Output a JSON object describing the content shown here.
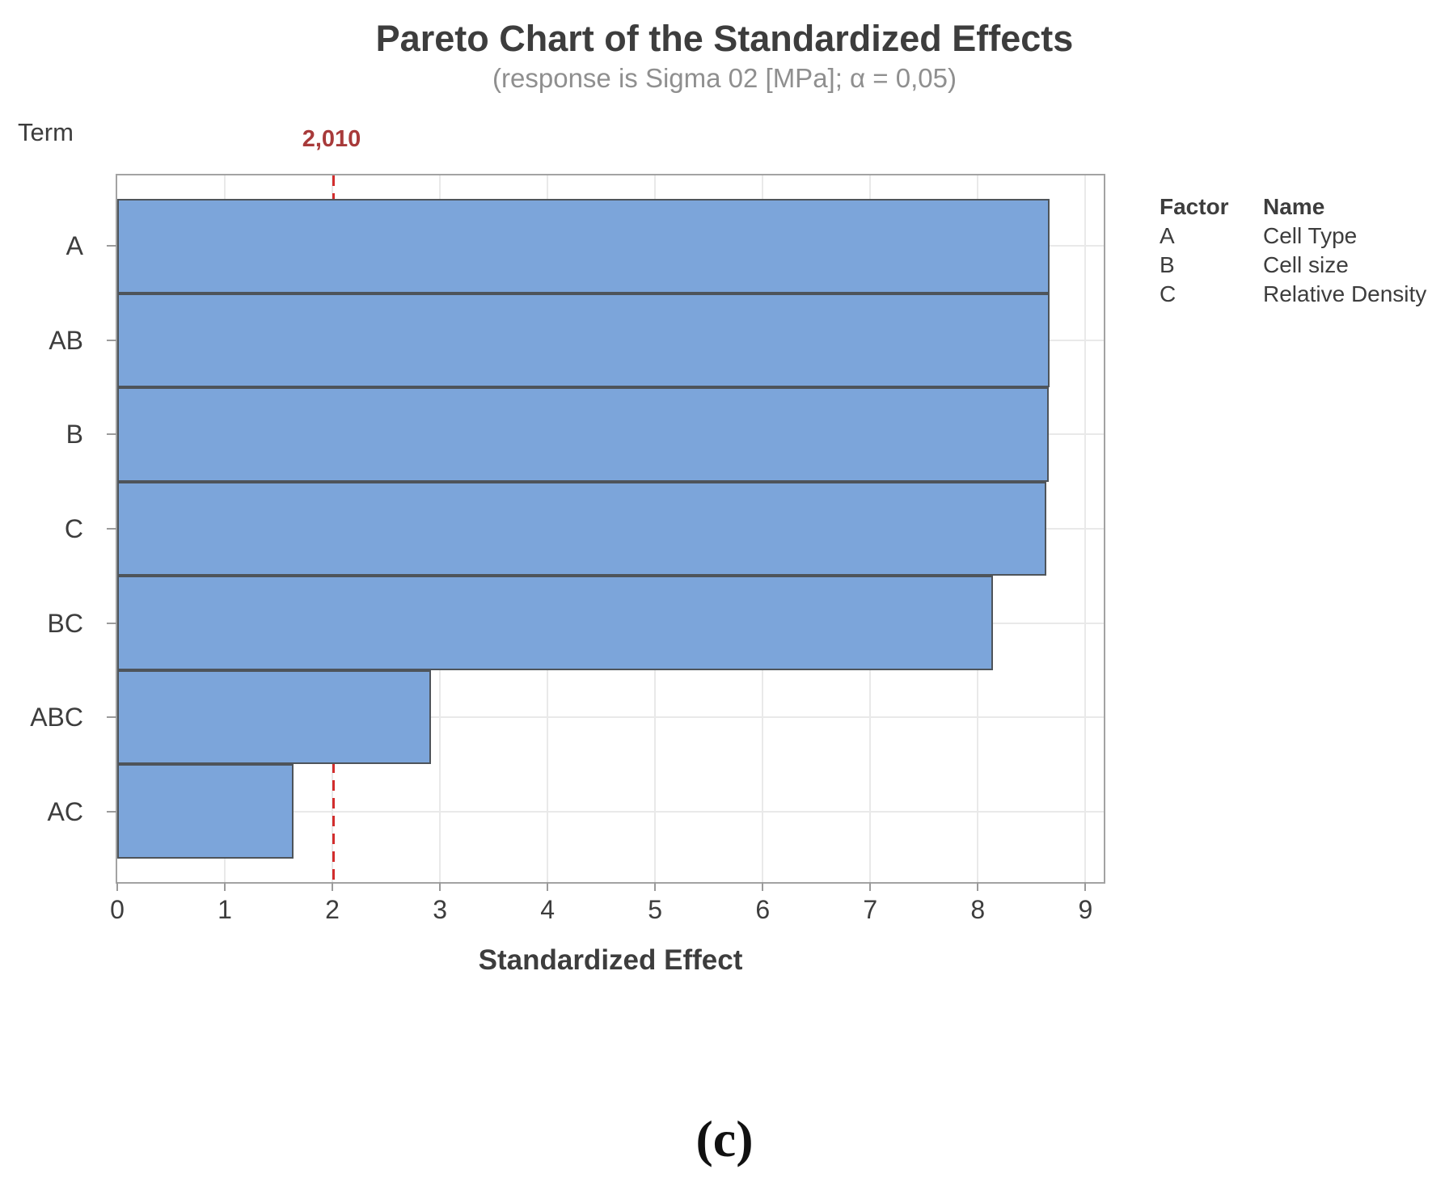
{
  "title": "Pareto Chart of the Standardized Effects",
  "subtitle": "(response is Sigma 02 [MPa]; α = 0,05)",
  "y_axis_title": "Term",
  "x_axis_title": "Standardized Effect",
  "caption": "(c)",
  "chart_data": {
    "type": "bar",
    "orientation": "horizontal",
    "title": "Pareto Chart of the Standardized Effects",
    "xlabel": "Standardized Effect",
    "ylabel": "Term",
    "categories": [
      "A",
      "AB",
      "B",
      "C",
      "BC",
      "ABC",
      "AC"
    ],
    "values": [
      8.67,
      8.67,
      8.66,
      8.64,
      8.14,
      2.92,
      1.64
    ],
    "xlim": [
      0,
      9.17
    ],
    "x_ticks": [
      0,
      1,
      2,
      3,
      4,
      5,
      6,
      7,
      8,
      9
    ],
    "grid": true,
    "legend_position": "right",
    "bar_color": "#7ca5da",
    "bar_border_color": "#4e545a",
    "gridline_color": "#e9e9e9",
    "tick_color": "#9b9b9b",
    "reference_line": {
      "value": 2.01,
      "label": "2,010",
      "color": "#d22d2d",
      "label_color": "#a83a3a"
    }
  },
  "legend": {
    "header": {
      "factor": "Factor",
      "name": "Name"
    },
    "rows": [
      {
        "factor": "A",
        "name": "Cell Type"
      },
      {
        "factor": "B",
        "name": "Cell size"
      },
      {
        "factor": "C",
        "name": "Relative Density"
      }
    ]
  }
}
